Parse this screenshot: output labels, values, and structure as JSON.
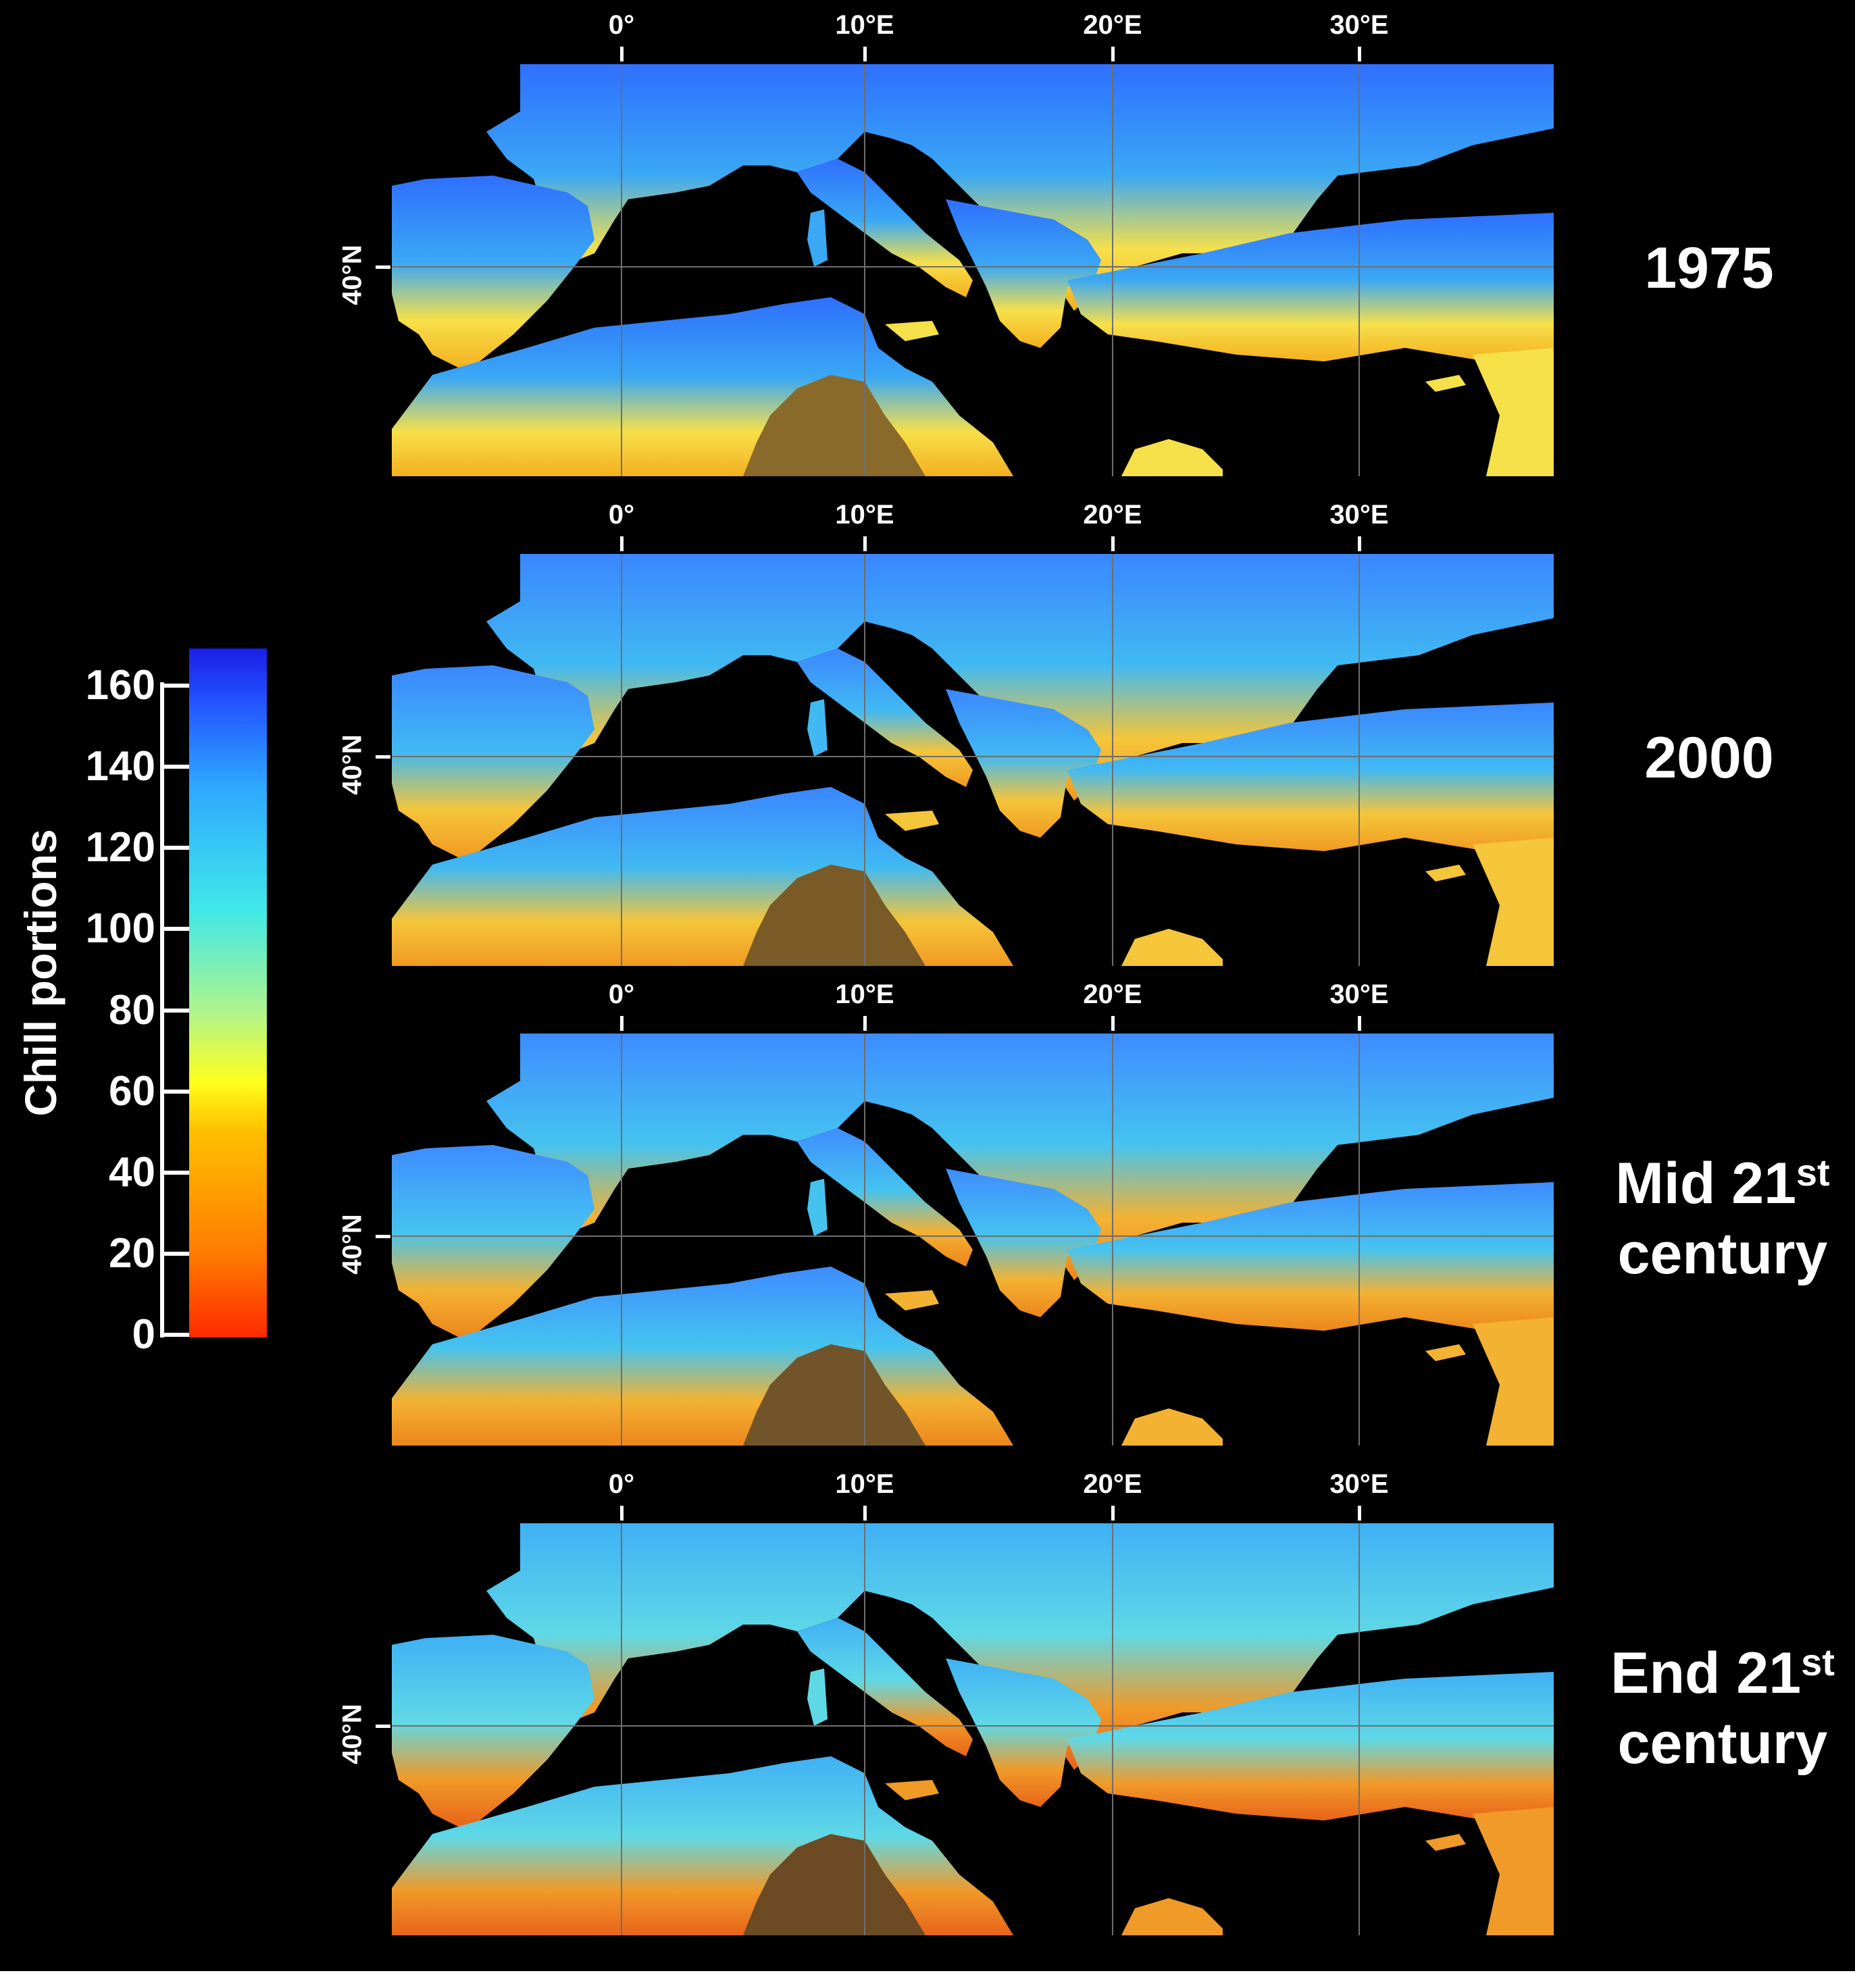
{
  "legend": {
    "title": "Chill portions",
    "ticks": [
      "160",
      "140",
      "120",
      "100",
      "80",
      "60",
      "40",
      "20",
      "0"
    ],
    "range": [
      0,
      170
    ],
    "colors": {
      "0": "#ff2a00",
      "40": "#ffc000",
      "60": "#ffff1a",
      "100": "#40e8e8",
      "140": "#2ea8ff",
      "170": "#1a1ee8"
    }
  },
  "axes": {
    "lon_labels": [
      "0°",
      "10°E",
      "20°E",
      "30°E"
    ],
    "lat_label": "40°N"
  },
  "panels": [
    {
      "label_main": "1975",
      "label_sup": "",
      "label_line2": ""
    },
    {
      "label_main": "2000",
      "label_sup": "",
      "label_line2": ""
    },
    {
      "label_main": "Mid 21",
      "label_sup": "st",
      "label_line2": "century"
    },
    {
      "label_main": "End 21",
      "label_sup": "st",
      "label_line2": "century"
    }
  ],
  "colors": {
    "background": "#000000",
    "sea": "#000000",
    "gridline": "#6e6e6e",
    "border": "#000000"
  }
}
